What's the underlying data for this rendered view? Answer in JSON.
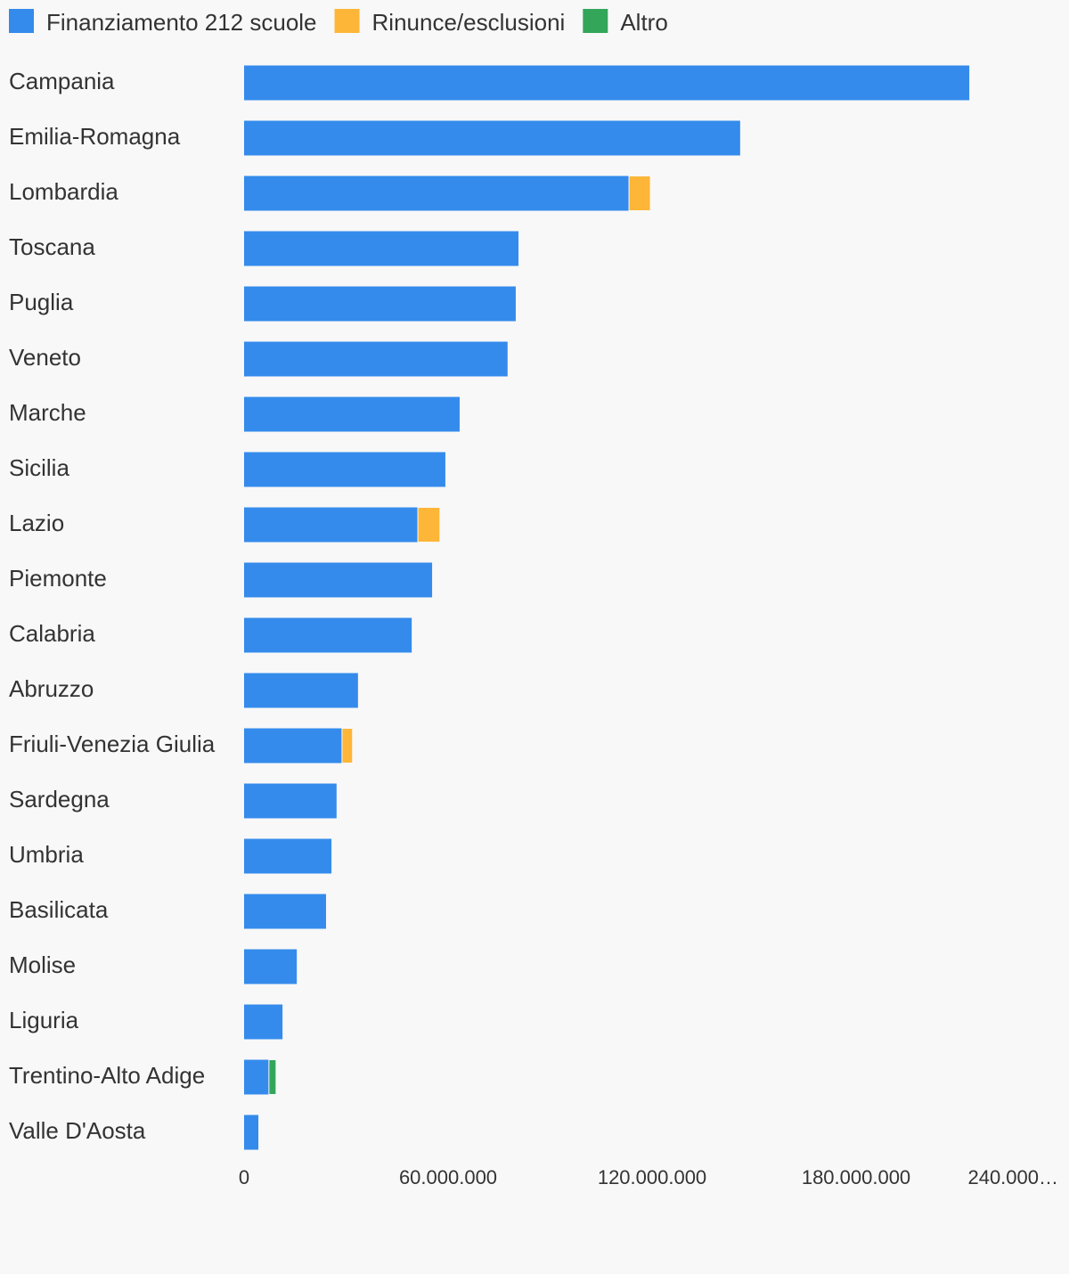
{
  "chart_data": {
    "type": "bar",
    "orientation": "horizontal",
    "stacked": true,
    "categories": [
      "Campania",
      "Emilia-Romagna",
      "Lombardia",
      "Toscana",
      "Puglia",
      "Veneto",
      "Marche",
      "Sicilia",
      "Lazio",
      "Piemonte",
      "Calabria",
      "Abruzzo",
      "Friuli-Venezia Giulia",
      "Sardegna",
      "Umbria",
      "Basilicata",
      "Molise",
      "Liguria",
      "Trentino-Alto Adige",
      "Valle D'Aosta"
    ],
    "series": [
      {
        "name": "Finanziamento 212 scuole",
        "color": "#348bec",
        "values": [
          213300000,
          145900000,
          113200000,
          80700000,
          79900000,
          77500000,
          63400000,
          59200000,
          51100000,
          55300000,
          49300000,
          33500000,
          28800000,
          27200000,
          25700000,
          24100000,
          15500000,
          11300000,
          7300000,
          4200000
        ]
      },
      {
        "name": "Rinunce/esclusioni",
        "color": "#fdb638",
        "values": [
          0,
          0,
          6300000,
          0,
          0,
          0,
          0,
          0,
          6500000,
          0,
          0,
          0,
          3100000,
          0,
          0,
          0,
          0,
          0,
          0,
          0
        ]
      },
      {
        "name": "Altro",
        "color": "#33a65a",
        "values": [
          0,
          0,
          0,
          0,
          0,
          0,
          0,
          0,
          0,
          0,
          0,
          0,
          0,
          0,
          0,
          0,
          0,
          0,
          2100000,
          0
        ]
      }
    ],
    "xlim": [
      0,
      240000000
    ],
    "xticks": [
      0,
      {
        "value": 60000000,
        "label": "60.000.000"
      },
      {
        "value": 120000000,
        "label": "120.000.000"
      },
      {
        "value": 180000000,
        "label": "180.000.000"
      },
      {
        "value": 240000000,
        "label": "240.000…"
      }
    ],
    "grid": false,
    "legend": "top"
  }
}
